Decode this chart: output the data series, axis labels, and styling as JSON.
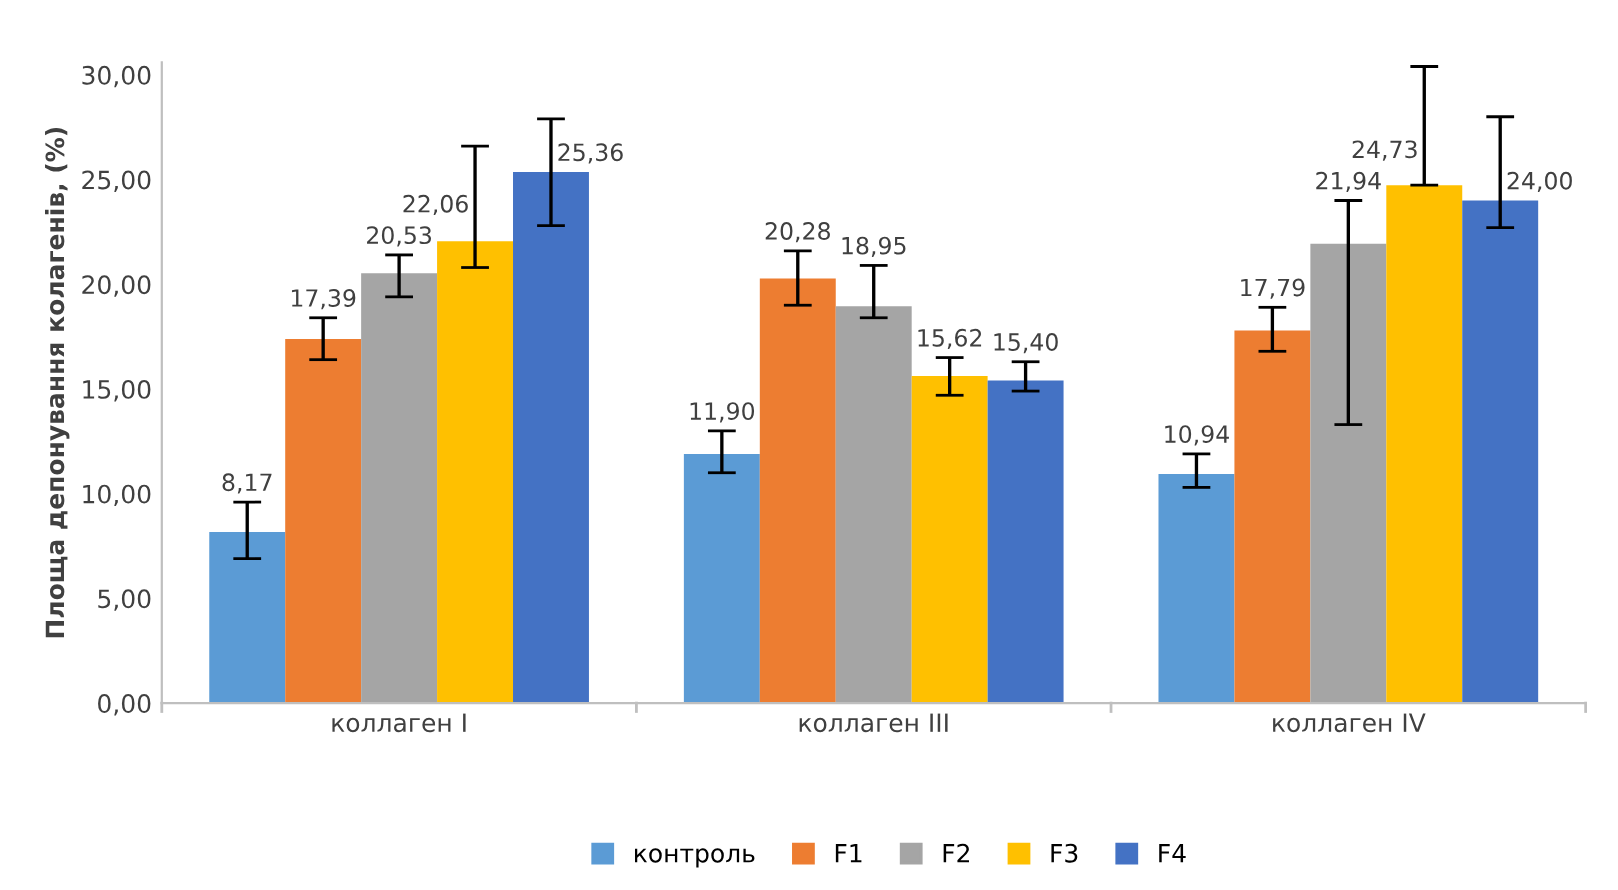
{
  "chart_data": {
    "type": "bar",
    "ylabel": "Площа депонування колагенів, (%)",
    "categories": [
      "коллаген I",
      "коллаген III",
      "коллаген IV"
    ],
    "series": [
      {
        "name": "контроль",
        "color": "#5b9bd5",
        "values": [
          8.17,
          11.9,
          10.94
        ],
        "value_labels": [
          "8,17",
          "11,90",
          "10,94"
        ],
        "errors": [
          [
            6.9,
            9.6
          ],
          [
            11.0,
            13.0
          ],
          [
            10.3,
            11.9
          ]
        ]
      },
      {
        "name": "F1",
        "color": "#ed7d31",
        "values": [
          17.39,
          20.28,
          17.79
        ],
        "value_labels": [
          "17,39",
          "20,28",
          "17,79"
        ],
        "errors": [
          [
            16.4,
            18.4
          ],
          [
            19.0,
            21.6
          ],
          [
            16.8,
            18.9
          ]
        ]
      },
      {
        "name": "F2",
        "color": "#a5a5a5",
        "values": [
          20.53,
          18.95,
          21.94
        ],
        "value_labels": [
          "20,53",
          "18,95",
          "21,94"
        ],
        "errors": [
          [
            19.4,
            21.4
          ],
          [
            18.4,
            20.9
          ],
          [
            13.3,
            24.0
          ]
        ]
      },
      {
        "name": "F3",
        "color": "#ffc000",
        "values": [
          22.06,
          15.62,
          24.73
        ],
        "value_labels": [
          "22,06",
          "15,62",
          "24,73"
        ],
        "errors": [
          [
            20.8,
            26.6
          ],
          [
            14.7,
            16.5
          ],
          [
            24.73,
            30.4
          ]
        ]
      },
      {
        "name": "F4",
        "color": "#4472c4",
        "values": [
          25.36,
          15.4,
          24.0
        ],
        "value_labels": [
          "25,36",
          "15,40",
          "24,00"
        ],
        "errors": [
          [
            22.8,
            27.9
          ],
          [
            14.9,
            16.3
          ],
          [
            22.7,
            28.0
          ]
        ]
      }
    ],
    "ylim": [
      0,
      30.6
    ],
    "yticks": [
      {
        "value": 0,
        "label": "0,00"
      },
      {
        "value": 5,
        "label": "5,00"
      },
      {
        "value": 10,
        "label": "10,00"
      },
      {
        "value": 15,
        "label": "15,00"
      },
      {
        "value": 20,
        "label": "20,00"
      },
      {
        "value": 25,
        "label": "25,00"
      },
      {
        "value": 30,
        "label": "30,00"
      }
    ],
    "legend": "bottom",
    "grid": false
  }
}
